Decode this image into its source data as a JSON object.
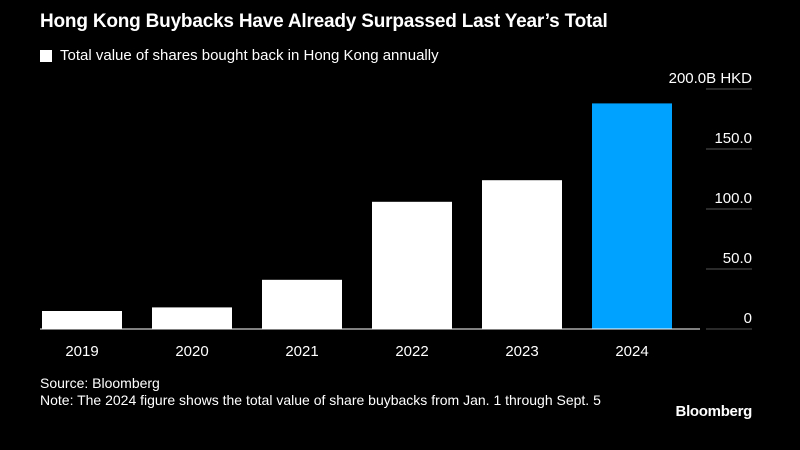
{
  "header": {
    "title": "Hong Kong Buybacks Have Already Surpassed Last Year’s Total"
  },
  "legend": {
    "label": "Total value of shares bought back in Hong Kong annually",
    "color": "#ffffff"
  },
  "chart_data": {
    "type": "bar",
    "categories": [
      "2019",
      "2020",
      "2021",
      "2022",
      "2023",
      "2024"
    ],
    "values": [
      15,
      18,
      41,
      106,
      124,
      188
    ],
    "bar_colors": [
      "#ffffff",
      "#ffffff",
      "#ffffff",
      "#ffffff",
      "#ffffff",
      "#00a2ff"
    ],
    "ylim": [
      0,
      200
    ],
    "y_ticks": [
      0,
      50,
      100,
      150,
      200
    ],
    "y_tick_labels": [
      "0",
      "50.0",
      "100.0",
      "150.0",
      "200.0B HKD"
    ],
    "y_axis_position": "right",
    "grid": false
  },
  "footer": {
    "source": "Source: Bloomberg",
    "note": "Note: The 2024 figure shows the total value of share buybacks from Jan. 1 through Sept. 5"
  },
  "brand": "Bloomberg"
}
